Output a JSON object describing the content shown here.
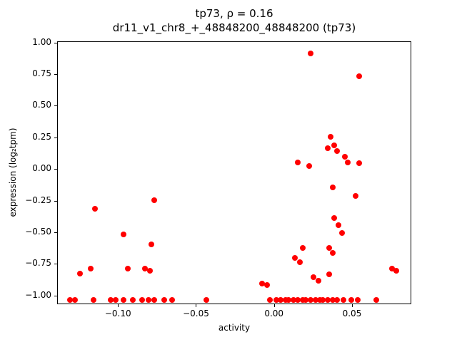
{
  "chart_data": {
    "type": "scatter",
    "title": "tp73, ρ = 0.16",
    "subtitle": "dr11_v1_chr8_+_48848200_48848200 (tp73)",
    "xlabel": "activity",
    "ylabel": "expression (log₂tpm)",
    "xlim": [
      -0.139,
      0.088
    ],
    "ylim": [
      -1.07,
      1.01
    ],
    "grid": false,
    "legend": "none",
    "marker_color": "#ff0000",
    "xticks": [
      -0.1,
      -0.05,
      0.0,
      0.05
    ],
    "xtick_labels": [
      "−0.10",
      "−0.05",
      "0.00",
      "0.05"
    ],
    "yticks": [
      1.0,
      0.75,
      0.5,
      0.25,
      0.0,
      -0.25,
      -0.5,
      -0.75,
      -1.0
    ],
    "ytick_labels": [
      "1.00",
      "0.75",
      "0.50",
      "0.25",
      "0.00",
      "−0.25",
      "−0.50",
      "−0.75",
      "−1.00"
    ],
    "points": [
      [
        -0.131,
        -1.03
      ],
      [
        -0.128,
        -1.03
      ],
      [
        -0.116,
        -1.03
      ],
      [
        -0.105,
        -1.03
      ],
      [
        -0.102,
        -1.03
      ],
      [
        -0.097,
        -1.03
      ],
      [
        -0.091,
        -1.03
      ],
      [
        -0.085,
        -1.03
      ],
      [
        -0.081,
        -1.03
      ],
      [
        -0.077,
        -1.03
      ],
      [
        -0.071,
        -1.03
      ],
      [
        -0.066,
        -1.03
      ],
      [
        -0.044,
        -1.03
      ],
      [
        -0.003,
        -1.03
      ],
      [
        0.001,
        -1.03
      ],
      [
        0.004,
        -1.03
      ],
      [
        0.007,
        -1.03
      ],
      [
        0.009,
        -1.03
      ],
      [
        0.012,
        -1.03
      ],
      [
        0.015,
        -1.03
      ],
      [
        0.018,
        -1.03
      ],
      [
        0.02,
        -1.03
      ],
      [
        0.023,
        -1.03
      ],
      [
        0.026,
        -1.03
      ],
      [
        0.029,
        -1.03
      ],
      [
        0.031,
        -1.03
      ],
      [
        0.034,
        -1.03
      ],
      [
        0.037,
        -1.03
      ],
      [
        0.04,
        -1.03
      ],
      [
        0.044,
        -1.03
      ],
      [
        0.049,
        -1.03
      ],
      [
        0.053,
        -1.03
      ],
      [
        0.065,
        -1.03
      ],
      [
        -0.125,
        -0.82
      ],
      [
        -0.118,
        -0.78
      ],
      [
        -0.115,
        -0.31
      ],
      [
        -0.097,
        -0.51
      ],
      [
        -0.094,
        -0.78
      ],
      [
        -0.083,
        -0.78
      ],
      [
        -0.08,
        -0.8
      ],
      [
        -0.079,
        -0.59
      ],
      [
        -0.077,
        -0.24
      ],
      [
        0.023,
        0.92
      ],
      [
        0.054,
        0.74
      ],
      [
        0.036,
        0.26
      ],
      [
        0.034,
        0.17
      ],
      [
        0.038,
        0.19
      ],
      [
        0.04,
        0.15
      ],
      [
        0.045,
        0.1
      ],
      [
        0.047,
        0.06
      ],
      [
        0.054,
        0.05
      ],
      [
        0.015,
        0.06
      ],
      [
        0.022,
        0.03
      ],
      [
        0.037,
        -0.14
      ],
      [
        0.052,
        -0.21
      ],
      [
        0.038,
        -0.38
      ],
      [
        0.041,
        -0.44
      ],
      [
        0.043,
        -0.5
      ],
      [
        0.018,
        -0.62
      ],
      [
        0.035,
        -0.62
      ],
      [
        0.037,
        -0.66
      ],
      [
        0.013,
        -0.7
      ],
      [
        0.016,
        -0.73
      ],
      [
        0.025,
        -0.85
      ],
      [
        0.028,
        -0.88
      ],
      [
        0.035,
        -0.83
      ],
      [
        -0.008,
        -0.9
      ],
      [
        -0.005,
        -0.91
      ],
      [
        0.075,
        -0.78
      ],
      [
        0.078,
        -0.8
      ]
    ]
  }
}
